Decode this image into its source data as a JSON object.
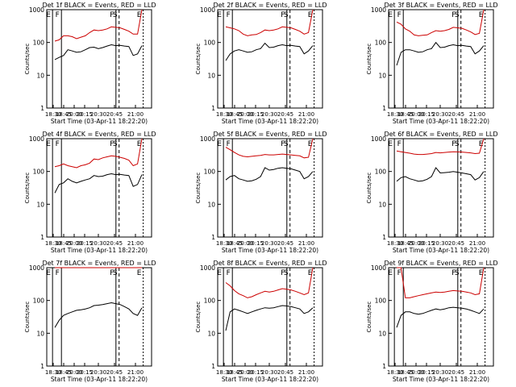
{
  "figure": {
    "xtick_labels": [
      "18:30",
      "18:45",
      "20:00",
      "20:15",
      "20:30",
      "20:45",
      "21:00"
    ],
    "ytick_labels": [
      "1",
      "10",
      "100",
      "1000"
    ],
    "ylabel": "Counts/sec",
    "xlabel": "Start Time (03-Apr-11 18:22:20)",
    "marker_labels": [
      "E",
      "F",
      "F",
      "S",
      "E"
    ],
    "black_color": "#000000",
    "red_color": "#cc0000"
  },
  "chart_data": [
    {
      "type": "line",
      "title": "Det 1f BLACK = Events, RED = LLD",
      "ylog": true,
      "ylim": [
        1,
        1000
      ],
      "series": [
        {
          "color": "black",
          "values": [
            30,
            35,
            40,
            60,
            55,
            50,
            52,
            60,
            70,
            72,
            65,
            70,
            78,
            85,
            80,
            82,
            78,
            75,
            40,
            45,
            80
          ]
        },
        {
          "color": "red",
          "values": [
            110,
            120,
            160,
            160,
            150,
            130,
            145,
            160,
            200,
            240,
            230,
            240,
            260,
            300,
            290,
            280,
            250,
            220,
            180,
            180,
            1000
          ]
        }
      ]
    },
    {
      "type": "line",
      "title": "Det 2f BLACK = Events, RED = LLD",
      "ylog": true,
      "ylim": [
        1,
        1000
      ],
      "series": [
        {
          "color": "black",
          "values": [
            28,
            45,
            55,
            60,
            55,
            50,
            52,
            60,
            65,
            95,
            70,
            72,
            80,
            85,
            80,
            82,
            78,
            75,
            45,
            55,
            80
          ]
        },
        {
          "color": "red",
          "values": [
            300,
            280,
            260,
            230,
            180,
            160,
            170,
            175,
            200,
            240,
            230,
            240,
            260,
            300,
            290,
            280,
            250,
            220,
            180,
            200,
            1000
          ]
        }
      ]
    },
    {
      "type": "line",
      "title": "Det 3f BLACK = Events, RED = LLD",
      "ylog": true,
      "ylim": [
        1,
        1000
      ],
      "series": [
        {
          "color": "black",
          "values": [
            20,
            50,
            60,
            60,
            55,
            50,
            52,
            60,
            65,
            100,
            70,
            72,
            80,
            85,
            80,
            82,
            78,
            75,
            45,
            55,
            80
          ]
        },
        {
          "color": "red",
          "values": [
            420,
            360,
            260,
            220,
            170,
            160,
            165,
            170,
            200,
            230,
            220,
            230,
            250,
            290,
            280,
            270,
            240,
            210,
            175,
            190,
            1000
          ]
        }
      ]
    },
    {
      "type": "line",
      "title": "Det 4f BLACK = Events, RED = LLD",
      "ylog": true,
      "ylim": [
        1,
        1000
      ],
      "series": [
        {
          "color": "black",
          "values": [
            22,
            40,
            45,
            60,
            50,
            45,
            50,
            55,
            60,
            75,
            70,
            72,
            80,
            85,
            80,
            82,
            78,
            75,
            35,
            40,
            80
          ]
        },
        {
          "color": "red",
          "values": [
            140,
            150,
            170,
            150,
            140,
            130,
            150,
            160,
            180,
            240,
            230,
            260,
            280,
            300,
            290,
            270,
            250,
            220,
            150,
            170,
            1000
          ]
        }
      ]
    },
    {
      "type": "line",
      "title": "Det 5f BLACK = Events, RED = LLD",
      "ylog": true,
      "ylim": [
        1,
        1000
      ],
      "series": [
        {
          "color": "black",
          "values": [
            55,
            70,
            75,
            60,
            55,
            50,
            52,
            58,
            70,
            130,
            110,
            115,
            125,
            130,
            125,
            120,
            110,
            100,
            60,
            70,
            100
          ]
        },
        {
          "color": "red",
          "values": [
            550,
            460,
            380,
            320,
            290,
            280,
            290,
            300,
            310,
            330,
            320,
            320,
            330,
            340,
            330,
            320,
            310,
            300,
            260,
            270,
            1000
          ]
        }
      ]
    },
    {
      "type": "line",
      "title": "Det 6f BLACK = Events, RED = LLD",
      "ylog": true,
      "ylim": [
        1,
        1000
      ],
      "series": [
        {
          "color": "black",
          "values": [
            50,
            65,
            70,
            60,
            55,
            50,
            52,
            58,
            70,
            130,
            90,
            92,
            95,
            100,
            95,
            90,
            85,
            80,
            55,
            65,
            100
          ]
        },
        {
          "color": "red",
          "values": [
            420,
            400,
            380,
            360,
            340,
            330,
            330,
            340,
            350,
            380,
            370,
            380,
            390,
            400,
            395,
            390,
            380,
            370,
            350,
            360,
            1000
          ]
        }
      ]
    },
    {
      "type": "line",
      "title": "Det 7f BLACK = Events, RED = LLD",
      "ylog": true,
      "ylim": [
        1,
        1000
      ],
      "series": [
        {
          "color": "black",
          "values": [
            15,
            25,
            35,
            40,
            45,
            50,
            52,
            55,
            60,
            70,
            72,
            75,
            80,
            85,
            80,
            75,
            65,
            55,
            40,
            35,
            60
          ]
        },
        {
          "color": "red",
          "values": [
            1000,
            1000,
            1000,
            1000,
            1000,
            1000,
            1000,
            1000,
            1000,
            1000,
            1000,
            1000,
            1000,
            1000,
            1000,
            1000,
            1000,
            1000,
            1000,
            1000,
            1000
          ]
        }
      ]
    },
    {
      "type": "line",
      "title": "Det 8f BLACK = Events, RED = LLD",
      "ylog": true,
      "ylim": [
        1,
        1000
      ],
      "series": [
        {
          "color": "black",
          "values": [
            12,
            45,
            55,
            50,
            45,
            40,
            45,
            50,
            55,
            60,
            58,
            60,
            65,
            70,
            68,
            65,
            60,
            55,
            40,
            45,
            60
          ]
        },
        {
          "color": "red",
          "values": [
            350,
            280,
            200,
            160,
            140,
            120,
            130,
            150,
            170,
            190,
            180,
            190,
            210,
            230,
            220,
            210,
            190,
            170,
            150,
            170,
            1000
          ]
        }
      ]
    },
    {
      "type": "line",
      "title": "Det 9f BLACK = Events, RED = LLD",
      "ylog": true,
      "ylim": [
        1,
        1000
      ],
      "series": [
        {
          "color": "black",
          "values": [
            15,
            35,
            45,
            45,
            40,
            38,
            40,
            45,
            50,
            55,
            52,
            55,
            60,
            62,
            60,
            58,
            55,
            50,
            45,
            40,
            55
          ]
        },
        {
          "color": "red",
          "values": [
            1000,
            1000,
            120,
            120,
            130,
            140,
            150,
            160,
            170,
            180,
            175,
            180,
            190,
            200,
            195,
            190,
            180,
            170,
            150,
            160,
            1000
          ]
        }
      ]
    }
  ]
}
